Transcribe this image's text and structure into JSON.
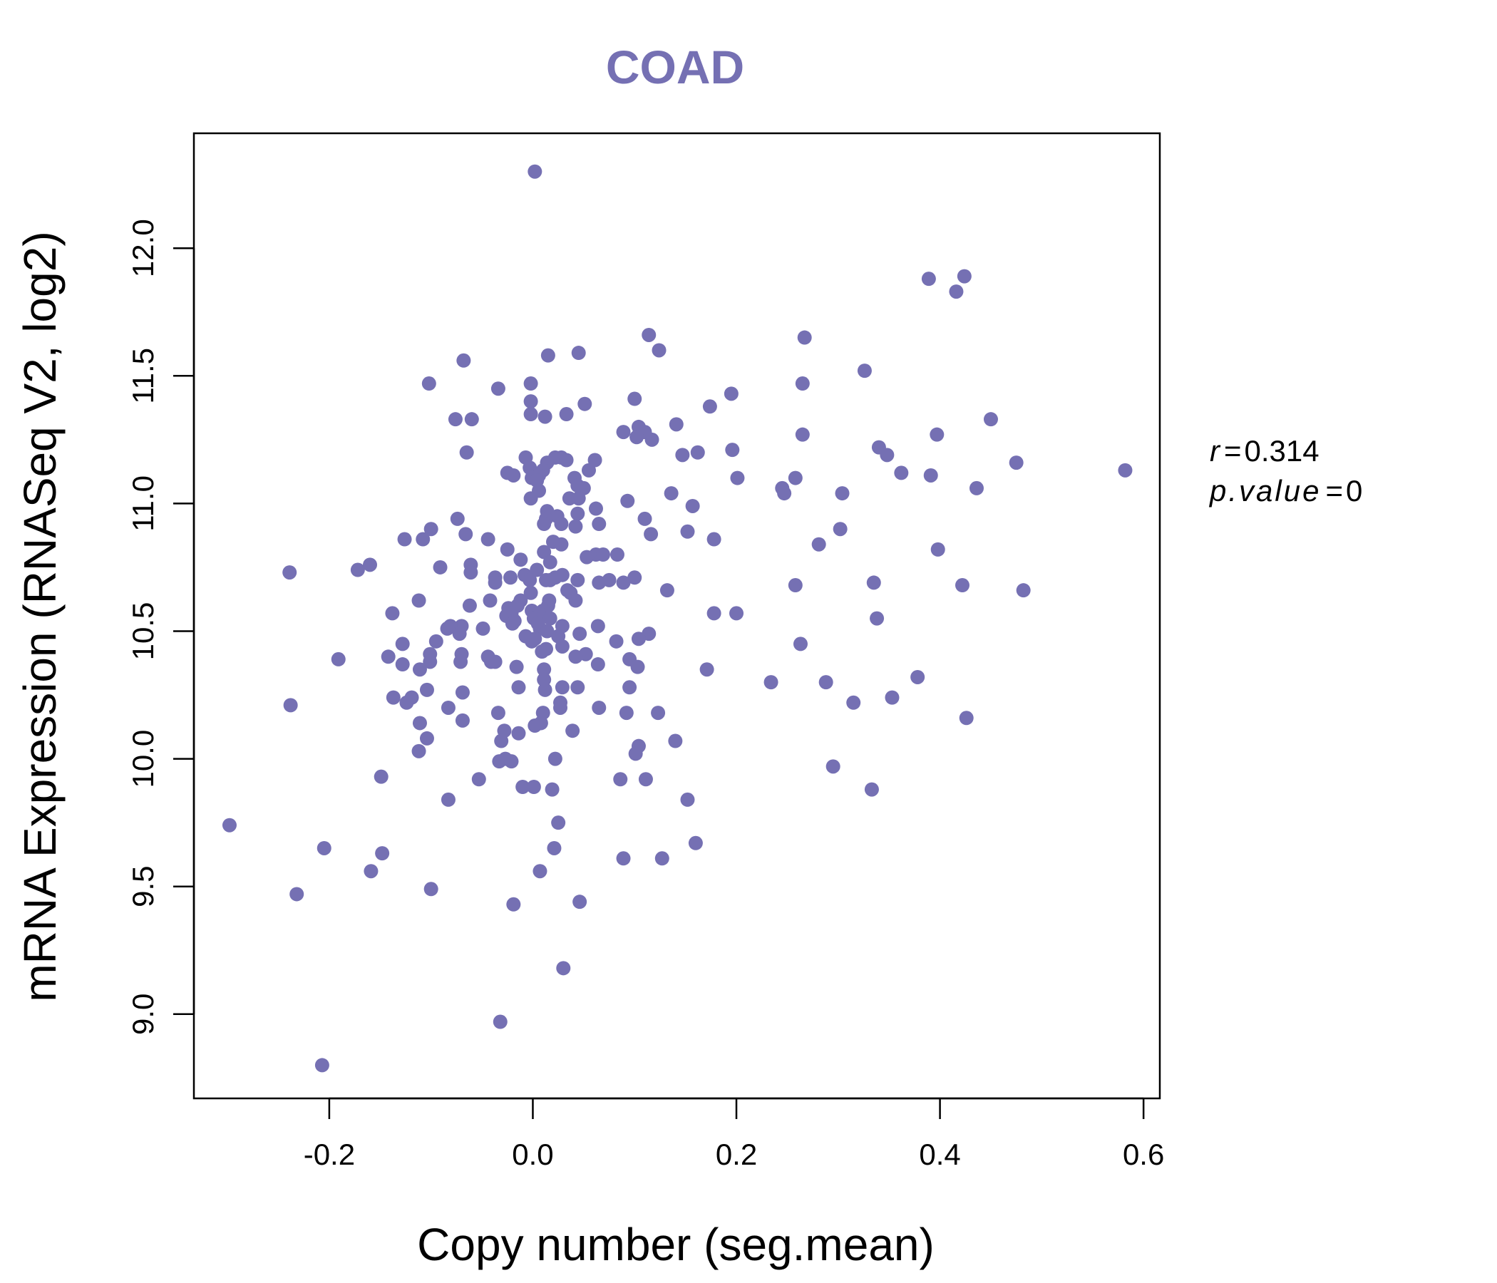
{
  "chart_data": {
    "type": "scatter",
    "title": "COAD",
    "xlabel": "Copy number (seg.mean)",
    "ylabel": "mRNA Expression (RNASeq V2, log2)",
    "xlim": [
      -0.333,
      0.616
    ],
    "ylim": [
      8.67,
      12.45
    ],
    "x_ticks": [
      "-0.2",
      "0.0",
      "0.2",
      "0.4",
      "0.6"
    ],
    "y_ticks": [
      "9.0",
      "9.5",
      "10.0",
      "10.5",
      "11.0",
      "11.5",
      "12.0"
    ],
    "point_color": "#7570b3",
    "stats": {
      "r_label": "r",
      "r_value": "0.314",
      "p_label": "p.value",
      "p_value": "0"
    },
    "points": [
      [
        0.002,
        12.3
      ],
      [
        0.424,
        11.89
      ],
      [
        0.389,
        11.88
      ],
      [
        0.416,
        11.83
      ],
      [
        0.114,
        11.66
      ],
      [
        0.267,
        11.65
      ],
      [
        0.124,
        11.6
      ],
      [
        0.045,
        11.59
      ],
      [
        0.015,
        11.58
      ],
      [
        -0.068,
        11.56
      ],
      [
        0.326,
        11.52
      ],
      [
        -0.102,
        11.47
      ],
      [
        -0.002,
        11.47
      ],
      [
        0.265,
        11.47
      ],
      [
        -0.034,
        11.45
      ],
      [
        0.195,
        11.43
      ],
      [
        0.1,
        11.41
      ],
      [
        -0.002,
        11.4
      ],
      [
        0.051,
        11.39
      ],
      [
        0.174,
        11.38
      ],
      [
        -0.002,
        11.35
      ],
      [
        0.033,
        11.35
      ],
      [
        0.012,
        11.34
      ],
      [
        -0.076,
        11.33
      ],
      [
        -0.06,
        11.33
      ],
      [
        0.45,
        11.33
      ],
      [
        0.141,
        11.31
      ],
      [
        0.104,
        11.3
      ],
      [
        0.089,
        11.28
      ],
      [
        0.11,
        11.28
      ],
      [
        0.265,
        11.27
      ],
      [
        0.397,
        11.27
      ],
      [
        0.102,
        11.26
      ],
      [
        0.117,
        11.25
      ],
      [
        0.34,
        11.22
      ],
      [
        0.196,
        11.21
      ],
      [
        0.162,
        11.2
      ],
      [
        -0.065,
        11.2
      ],
      [
        0.147,
        11.19
      ],
      [
        0.348,
        11.19
      ],
      [
        0.028,
        11.18
      ],
      [
        0.022,
        11.18
      ],
      [
        0.033,
        11.17
      ],
      [
        0.061,
        11.17
      ],
      [
        0.014,
        11.16
      ],
      [
        -0.007,
        11.18
      ],
      [
        0.475,
        11.16
      ],
      [
        -0.003,
        11.14
      ],
      [
        0.055,
        11.13
      ],
      [
        0.582,
        11.13
      ],
      [
        0.01,
        11.13
      ],
      [
        0.362,
        11.12
      ],
      [
        -0.025,
        11.12
      ],
      [
        -0.019,
        11.11
      ],
      [
        0.391,
        11.11
      ],
      [
        0.258,
        11.1
      ],
      [
        0.201,
        11.1
      ],
      [
        0.041,
        11.1
      ],
      [
        0.006,
        11.11
      ],
      [
        -0.001,
        11.1
      ],
      [
        0.004,
        11.09
      ],
      [
        0.044,
        11.07
      ],
      [
        0.05,
        11.06
      ],
      [
        0.436,
        11.06
      ],
      [
        0.245,
        11.06
      ],
      [
        0.006,
        11.05
      ],
      [
        0.304,
        11.04
      ],
      [
        0.247,
        11.04
      ],
      [
        0.136,
        11.04
      ],
      [
        0.036,
        11.02
      ],
      [
        0.045,
        11.02
      ],
      [
        -0.002,
        11.02
      ],
      [
        0.093,
        11.01
      ],
      [
        0.157,
        10.99
      ],
      [
        0.062,
        10.98
      ],
      [
        0.014,
        10.97
      ],
      [
        0.044,
        10.96
      ],
      [
        0.024,
        10.95
      ],
      [
        0.013,
        10.94
      ],
      [
        -0.074,
        10.94
      ],
      [
        0.11,
        10.94
      ],
      [
        0.065,
        10.92
      ],
      [
        0.011,
        10.92
      ],
      [
        0.028,
        10.92
      ],
      [
        0.042,
        10.91
      ],
      [
        0.302,
        10.9
      ],
      [
        -0.1,
        10.9
      ],
      [
        0.152,
        10.89
      ],
      [
        0.116,
        10.88
      ],
      [
        -0.066,
        10.88
      ],
      [
        -0.044,
        10.86
      ],
      [
        -0.126,
        10.86
      ],
      [
        -0.108,
        10.86
      ],
      [
        0.178,
        10.86
      ],
      [
        0.02,
        10.85
      ],
      [
        0.028,
        10.84
      ],
      [
        0.281,
        10.84
      ],
      [
        -0.025,
        10.82
      ],
      [
        0.398,
        10.82
      ],
      [
        0.011,
        10.81
      ],
      [
        0.062,
        10.8
      ],
      [
        0.069,
        10.8
      ],
      [
        0.083,
        10.8
      ],
      [
        0.053,
        10.79
      ],
      [
        -0.012,
        10.78
      ],
      [
        0.017,
        10.77
      ],
      [
        -0.061,
        10.76
      ],
      [
        -0.16,
        10.76
      ],
      [
        0.004,
        10.74
      ],
      [
        -0.172,
        10.74
      ],
      [
        -0.091,
        10.75
      ],
      [
        -0.239,
        10.73
      ],
      [
        -0.061,
        10.73
      ],
      [
        0.029,
        10.72
      ],
      [
        -0.008,
        10.72
      ],
      [
        0.1,
        10.71
      ],
      [
        -0.022,
        10.71
      ],
      [
        -0.037,
        10.71
      ],
      [
        0.044,
        10.7
      ],
      [
        0.017,
        10.7
      ],
      [
        0.022,
        10.71
      ],
      [
        0.075,
        10.7
      ],
      [
        -0.003,
        10.7
      ],
      [
        0.335,
        10.69
      ],
      [
        0.013,
        10.7
      ],
      [
        -0.037,
        10.69
      ],
      [
        0.065,
        10.69
      ],
      [
        0.089,
        10.69
      ],
      [
        0.422,
        10.68
      ],
      [
        0.258,
        10.68
      ],
      [
        0.132,
        10.66
      ],
      [
        0.482,
        10.66
      ],
      [
        0.034,
        10.66
      ],
      [
        -0.002,
        10.65
      ],
      [
        0.037,
        10.65
      ],
      [
        0.016,
        10.62
      ],
      [
        0.042,
        10.62
      ],
      [
        -0.112,
        10.62
      ],
      [
        -0.042,
        10.62
      ],
      [
        -0.012,
        10.62
      ],
      [
        -0.015,
        10.6
      ],
      [
        -0.062,
        10.6
      ],
      [
        0.015,
        10.6
      ],
      [
        -0.024,
        10.59
      ],
      [
        -0.001,
        10.58
      ],
      [
        -0.021,
        10.57
      ],
      [
        0.01,
        10.58
      ],
      [
        0.006,
        10.57
      ],
      [
        -0.138,
        10.57
      ],
      [
        0.178,
        10.57
      ],
      [
        0.2,
        10.57
      ],
      [
        -0.026,
        10.56
      ],
      [
        0.017,
        10.55
      ],
      [
        0.338,
        10.55
      ],
      [
        -0.018,
        10.54
      ],
      [
        0.001,
        10.55
      ],
      [
        0.005,
        10.53
      ],
      [
        -0.02,
        10.53
      ],
      [
        -0.07,
        10.52
      ],
      [
        0.064,
        10.52
      ],
      [
        0.029,
        10.52
      ],
      [
        -0.081,
        10.52
      ],
      [
        0.007,
        10.51
      ],
      [
        -0.049,
        10.51
      ],
      [
        0.014,
        10.5
      ],
      [
        -0.084,
        10.51
      ],
      [
        -0.072,
        10.49
      ],
      [
        0.046,
        10.49
      ],
      [
        -0.007,
        10.48
      ],
      [
        0.114,
        10.49
      ],
      [
        0.025,
        10.48
      ],
      [
        0.002,
        10.47
      ],
      [
        0.104,
        10.47
      ],
      [
        -0.001,
        10.46
      ],
      [
        -0.128,
        10.45
      ],
      [
        -0.095,
        10.46
      ],
      [
        0.082,
        10.46
      ],
      [
        0.263,
        10.45
      ],
      [
        0.029,
        10.44
      ],
      [
        0.009,
        10.42
      ],
      [
        0.013,
        10.43
      ],
      [
        -0.101,
        10.41
      ],
      [
        -0.07,
        10.41
      ],
      [
        0.052,
        10.41
      ],
      [
        -0.044,
        10.4
      ],
      [
        -0.142,
        10.4
      ],
      [
        0.042,
        10.4
      ],
      [
        -0.191,
        10.39
      ],
      [
        0.095,
        10.39
      ],
      [
        -0.041,
        10.38
      ],
      [
        -0.037,
        10.38
      ],
      [
        -0.128,
        10.37
      ],
      [
        -0.101,
        10.38
      ],
      [
        -0.071,
        10.38
      ],
      [
        0.103,
        10.36
      ],
      [
        0.064,
        10.37
      ],
      [
        -0.016,
        10.36
      ],
      [
        -0.111,
        10.35
      ],
      [
        0.171,
        10.35
      ],
      [
        0.011,
        10.35
      ],
      [
        0.011,
        10.31
      ],
      [
        0.378,
        10.32
      ],
      [
        0.234,
        10.3
      ],
      [
        0.288,
        10.3
      ],
      [
        -0.014,
        10.28
      ],
      [
        0.044,
        10.28
      ],
      [
        0.029,
        10.28
      ],
      [
        0.095,
        10.28
      ],
      [
        0.012,
        10.27
      ],
      [
        -0.104,
        10.27
      ],
      [
        -0.069,
        10.26
      ],
      [
        -0.137,
        10.24
      ],
      [
        0.353,
        10.24
      ],
      [
        -0.119,
        10.24
      ],
      [
        -0.124,
        10.22
      ],
      [
        0.315,
        10.22
      ],
      [
        0.027,
        10.22
      ],
      [
        0.027,
        10.2
      ],
      [
        -0.238,
        10.21
      ],
      [
        0.065,
        10.2
      ],
      [
        -0.083,
        10.2
      ],
      [
        0.01,
        10.18
      ],
      [
        0.123,
        10.18
      ],
      [
        0.092,
        10.18
      ],
      [
        -0.034,
        10.18
      ],
      [
        0.426,
        10.16
      ],
      [
        -0.111,
        10.14
      ],
      [
        -0.069,
        10.15
      ],
      [
        0.008,
        10.14
      ],
      [
        0.002,
        10.13
      ],
      [
        0.039,
        10.11
      ],
      [
        -0.028,
        10.11
      ],
      [
        -0.014,
        10.1
      ],
      [
        -0.104,
        10.08
      ],
      [
        0.14,
        10.07
      ],
      [
        -0.031,
        10.07
      ],
      [
        0.104,
        10.05
      ],
      [
        -0.112,
        10.03
      ],
      [
        0.101,
        10.02
      ],
      [
        0.022,
        10.0
      ],
      [
        -0.027,
        10.0
      ],
      [
        -0.033,
        9.99
      ],
      [
        -0.021,
        9.99
      ],
      [
        0.295,
        9.97
      ],
      [
        -0.149,
        9.93
      ],
      [
        -0.053,
        9.92
      ],
      [
        0.086,
        9.92
      ],
      [
        0.111,
        9.92
      ],
      [
        -0.01,
        9.89
      ],
      [
        0.001,
        9.89
      ],
      [
        0.019,
        9.88
      ],
      [
        0.333,
        9.88
      ],
      [
        0.152,
        9.84
      ],
      [
        -0.083,
        9.84
      ],
      [
        0.025,
        9.75
      ],
      [
        -0.298,
        9.74
      ],
      [
        0.16,
        9.67
      ],
      [
        0.021,
        9.65
      ],
      [
        -0.205,
        9.65
      ],
      [
        -0.148,
        9.63
      ],
      [
        0.127,
        9.61
      ],
      [
        0.089,
        9.61
      ],
      [
        -0.159,
        9.56
      ],
      [
        0.007,
        9.56
      ],
      [
        -0.1,
        9.49
      ],
      [
        -0.232,
        9.47
      ],
      [
        0.046,
        9.44
      ],
      [
        -0.019,
        9.43
      ],
      [
        0.03,
        9.18
      ],
      [
        -0.032,
        8.97
      ],
      [
        -0.207,
        8.8
      ]
    ]
  }
}
